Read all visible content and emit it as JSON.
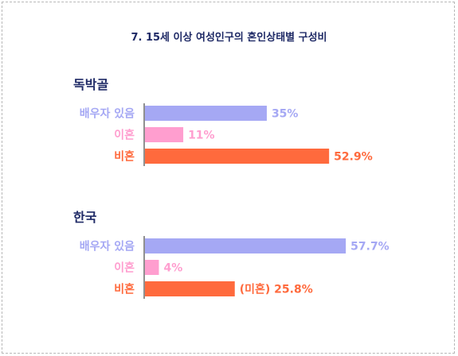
{
  "title": "7. 15세 이상 여성인구의 혼인상태별 구성비",
  "colors": {
    "married": "#a5a8f4",
    "divorced": "#ff9ecf",
    "single": "#ff6a3d"
  },
  "chart_data": [
    {
      "type": "bar",
      "orientation": "horizontal",
      "title": "독박골",
      "categories": [
        "배우자 있음",
        "이혼",
        "비혼"
      ],
      "values": [
        35,
        11,
        52.9
      ],
      "value_labels": [
        "35%",
        "11%",
        "52.9%"
      ],
      "unit": "%"
    },
    {
      "type": "bar",
      "orientation": "horizontal",
      "title": "한국",
      "categories": [
        "배우자 있음",
        "이혼",
        "비혼"
      ],
      "values": [
        57.7,
        4,
        25.8
      ],
      "value_labels": [
        "57.7%",
        "4%",
        "(미혼) 25.8%"
      ],
      "unit": "%"
    }
  ]
}
